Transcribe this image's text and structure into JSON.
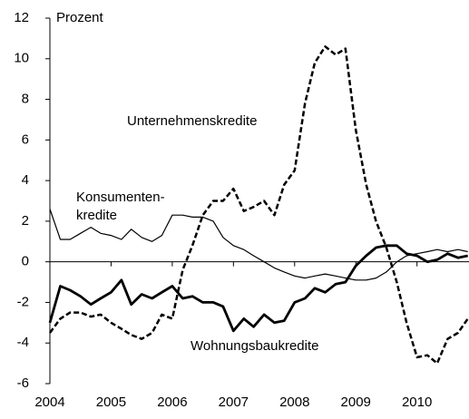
{
  "chart_data": {
    "type": "line",
    "ylabel": "Prozent",
    "x": [
      2004,
      2004.17,
      2004.33,
      2004.5,
      2004.67,
      2004.83,
      2005,
      2005.17,
      2005.33,
      2005.5,
      2005.67,
      2005.83,
      2006,
      2006.17,
      2006.33,
      2006.5,
      2006.67,
      2006.83,
      2007,
      2007.17,
      2007.33,
      2007.5,
      2007.67,
      2007.83,
      2008,
      2008.17,
      2008.33,
      2008.5,
      2008.67,
      2008.83,
      2009,
      2009.17,
      2009.33,
      2009.5,
      2009.67,
      2009.83,
      2010,
      2010.17,
      2010.33,
      2010.5,
      2010.67,
      2010.83
    ],
    "series": [
      {
        "color": "#000000",
        "dash": true,
        "width": 2.5,
        "values": [
          -3.5,
          -2.8,
          -2.5,
          -2.5,
          -2.7,
          -2.6,
          -3.0,
          -3.3,
          -3.6,
          -3.8,
          -3.5,
          -2.6,
          -2.8,
          -0.4,
          0.8,
          2.3,
          3.0,
          3.0,
          3.6,
          2.5,
          2.7,
          3.0,
          2.3,
          3.8,
          4.5,
          7.8,
          9.8,
          10.6,
          10.2,
          10.5,
          6.5,
          3.8,
          2.0,
          0.7,
          -1.0,
          -3.0,
          -4.7,
          -4.6,
          -5.0,
          -3.8,
          -3.5,
          -2.8
        ]
      },
      {
        "color": "#000000",
        "dash": false,
        "width": 1.2,
        "values": [
          2.6,
          1.1,
          1.1,
          1.4,
          1.7,
          1.4,
          1.3,
          1.1,
          1.6,
          1.2,
          1.0,
          1.3,
          2.3,
          2.3,
          2.2,
          2.2,
          2.0,
          1.2,
          0.8,
          0.6,
          0.3,
          0.0,
          -0.3,
          -0.5,
          -0.7,
          -0.8,
          -0.7,
          -0.6,
          -0.7,
          -0.8,
          -0.9,
          -0.9,
          -0.8,
          -0.5,
          0.0,
          0.3,
          0.4,
          0.5,
          0.6,
          0.5,
          0.6,
          0.5
        ]
      },
      {
        "color": "#000000",
        "dash": false,
        "width": 2.8,
        "values": [
          -3.0,
          -1.2,
          -1.4,
          -1.7,
          -2.1,
          -1.8,
          -1.5,
          -0.9,
          -2.1,
          -1.6,
          -1.8,
          -1.5,
          -1.2,
          -1.8,
          -1.7,
          -2.0,
          -2.0,
          -2.2,
          -3.4,
          -2.8,
          -3.2,
          -2.6,
          -3.0,
          -2.9,
          -2.0,
          -1.8,
          -1.3,
          -1.5,
          -1.1,
          -1.0,
          -0.2,
          0.3,
          0.7,
          0.8,
          0.8,
          0.4,
          0.3,
          0.0,
          0.1,
          0.4,
          0.2,
          0.3
        ]
      }
    ],
    "annotations": [
      "Unternehmenskredite",
      "Konsumenten-",
      "kredite",
      "Wohnungsbaukredite"
    ],
    "xlim": [
      2004,
      2010.85
    ],
    "xticks": [
      2004,
      2005,
      2006,
      2007,
      2008,
      2009,
      2010
    ],
    "ylim": [
      -6,
      12
    ],
    "yticks": [
      -6,
      -4,
      -2,
      0,
      2,
      4,
      6,
      8,
      10,
      12
    ],
    "grid": false
  }
}
